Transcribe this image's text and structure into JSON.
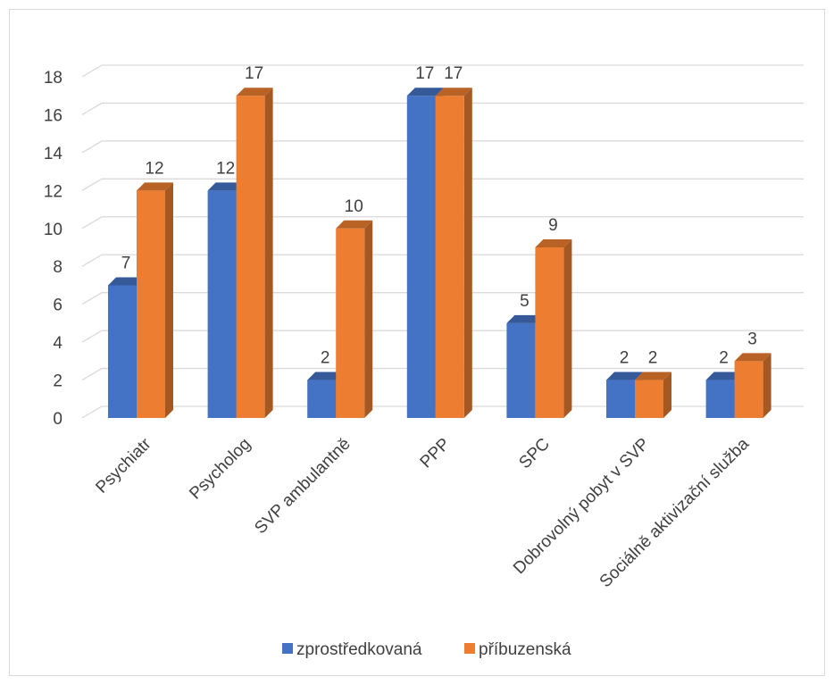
{
  "chart_data": {
    "type": "bar",
    "title": "",
    "xlabel": "",
    "ylabel": "",
    "ylim": [
      0,
      18
    ],
    "yticks": [
      0,
      2,
      4,
      6,
      8,
      10,
      12,
      14,
      16,
      18
    ],
    "grid": true,
    "legend_position": "bottom",
    "style": "3d-clustered-column",
    "categories": [
      "Psychiatr",
      "Psycholog",
      "SVP ambulantně",
      "PPP",
      "SPC",
      "Dobrovolný pobyt v SVP",
      "Sociálně aktivizační služba"
    ],
    "series": [
      {
        "name": "zprostředkovaná",
        "color": "#4472C4",
        "values": [
          7,
          12,
          2,
          17,
          5,
          2,
          2
        ]
      },
      {
        "name": "příbuzenská",
        "color": "#ED7D31",
        "values": [
          12,
          17,
          10,
          17,
          9,
          2,
          3
        ]
      }
    ]
  }
}
